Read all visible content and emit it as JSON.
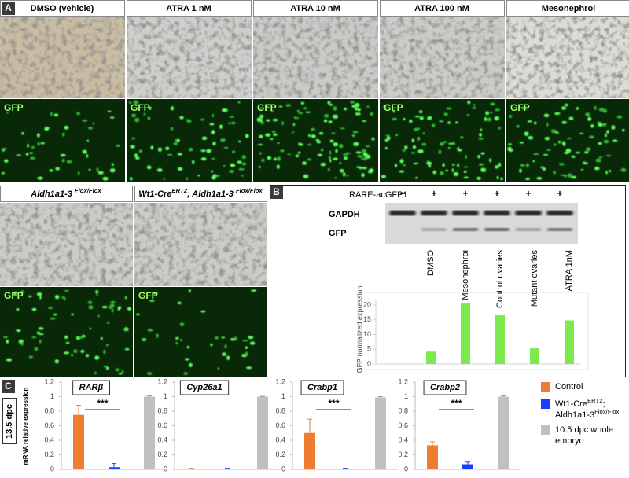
{
  "panel_a": {
    "label": "A",
    "top_row": [
      "DMSO (vehicle)",
      "ATRA 1 nM",
      "ATRA 10 nM",
      "ATRA 100 nM",
      "Mesonephroi"
    ],
    "bottom_row": [
      [
        "Aldh1a1-3 ",
        "Flox/Flox"
      ],
      [
        "Wt1-Cre",
        "ERT2",
        "; Aldh1a1-3 ",
        "Flox/Flox"
      ]
    ],
    "gfp_label": "GFP"
  },
  "panel_b": {
    "label": "B",
    "construct": "RARE-acGFP1",
    "lanes": [
      "−",
      "+",
      "+",
      "+",
      "+",
      "+"
    ],
    "bands": [
      "GAPDH",
      "GFP"
    ]
  },
  "panel_c": {
    "label": "C",
    "stage": "13.5 dpc",
    "y_label": "mRNA relative expression",
    "legend": [
      {
        "label": [
          [
            "Control"
          ]
        ],
        "color": "#ed7d31"
      },
      {
        "label": [
          [
            "Wt1-Cre",
            "ERT2",
            ";"
          ],
          [
            "Aldh1a1-3",
            "Flox/Flox"
          ]
        ],
        "color": "#1a3cff"
      },
      {
        "label": [
          [
            "10.5 dpc whole"
          ],
          [
            "embryo"
          ]
        ],
        "color": "#c0c0c0"
      }
    ]
  },
  "chart_data": [
    {
      "type": "bar",
      "y_label": "GFP normalized expression",
      "categories": [
        "DMSO",
        "Mesonephroi",
        "Control ovaries",
        "Mutant ovaries",
        "ATRA 1nM"
      ],
      "values": [
        4.2,
        20.5,
        16.5,
        5.3,
        14.8
      ],
      "color": "#7ee84f",
      "ylim": [
        0,
        22
      ],
      "yticks": [
        0,
        5,
        10,
        15,
        20
      ]
    },
    {
      "type": "errorbar",
      "title": "RARβ",
      "values": [
        0.75,
        0.03,
        1.0
      ],
      "errors": [
        0.13,
        0.05,
        0.01
      ],
      "significance": "***",
      "ylim": [
        0,
        1.2
      ],
      "yticks": [
        0,
        0.2,
        0.4,
        0.6,
        0.8,
        1,
        1.2
      ]
    },
    {
      "type": "errorbar",
      "title": "Cyp26a1",
      "values": [
        0.01,
        0.01,
        1.0
      ],
      "errors": [
        0.005,
        0.005,
        0.005
      ],
      "ylim": [
        0,
        1.2
      ],
      "yticks": [
        0,
        0.2,
        0.4,
        0.6,
        0.8,
        1,
        1.2
      ]
    },
    {
      "type": "errorbar",
      "title": "Crabp1",
      "values": [
        0.5,
        0.01,
        0.99
      ],
      "errors": [
        0.19,
        0.005,
        0.01
      ],
      "significance": "***",
      "ylim": [
        0,
        1.2
      ],
      "yticks": [
        0,
        0.2,
        0.4,
        0.6,
        0.8,
        1,
        1.2
      ]
    },
    {
      "type": "errorbar",
      "title": "Crabp2",
      "values": [
        0.33,
        0.07,
        1.0
      ],
      "errors": [
        0.05,
        0.03,
        0.01
      ],
      "significance": "***",
      "ylim": [
        0,
        1.2
      ],
      "yticks": [
        0,
        0.2,
        0.4,
        0.6,
        0.8,
        1,
        1.2
      ]
    }
  ]
}
